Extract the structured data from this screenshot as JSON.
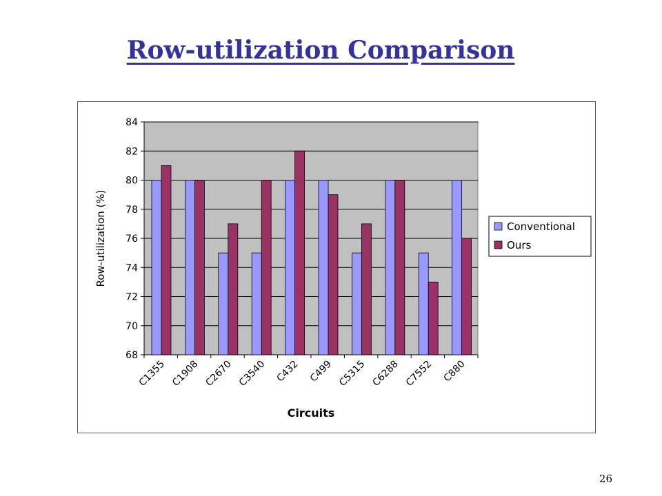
{
  "slide": {
    "title": "Row-utilization Comparison",
    "page_number": "26"
  },
  "colors": {
    "title": "#333399",
    "plot_background": "#C0C0C0",
    "conventional": "#9999FF",
    "ours": "#993366"
  },
  "chart_data": {
    "type": "bar",
    "xlabel": "Circuits",
    "ylabel": "Row-utilization (%)",
    "ylim": [
      68,
      84
    ],
    "yticks": [
      68,
      70,
      72,
      74,
      76,
      78,
      80,
      82,
      84
    ],
    "grid": true,
    "legend_position": "right",
    "categories": [
      "C1355",
      "C1908",
      "C2670",
      "C3540",
      "C432",
      "C499",
      "C5315",
      "C6288",
      "C7552",
      "C880"
    ],
    "series": [
      {
        "name": "Conventional",
        "values": [
          80,
          80,
          75,
          75,
          80,
          80,
          75,
          80,
          75,
          80
        ]
      },
      {
        "name": "Ours",
        "values": [
          81,
          80,
          77,
          80,
          82,
          79,
          77,
          80,
          73,
          76
        ]
      }
    ]
  }
}
